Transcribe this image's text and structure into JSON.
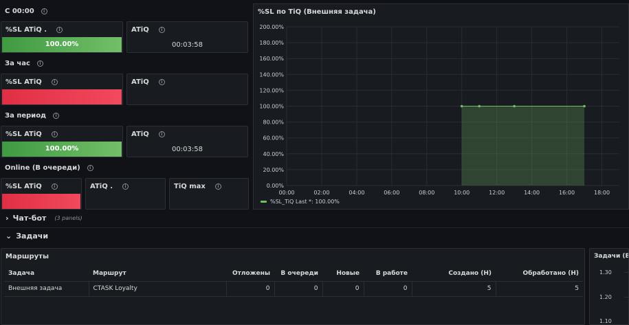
{
  "sections": {
    "since_midnight": "С 00:00",
    "last_hour": "За час",
    "period": "За период",
    "online": "Online (В очереди)"
  },
  "stats": {
    "sl_label": "%SL ATiQ .",
    "sl_label2": "%SL ATiQ",
    "atiq_label": "ATiQ",
    "atiq_label2": "ATiQ .",
    "tiq_max_label": "TiQ max",
    "since_sl_value": "100.00%",
    "since_atiq_value": "00:03:58",
    "period_sl_value": "100.00%",
    "period_atiq_value": "00:03:58",
    "colors": {
      "ok": "#73bf69",
      "bad": "#f2495c"
    }
  },
  "chart_data": {
    "type": "area",
    "title": "%SL по TiQ (Внешняя задача)",
    "y_ticks": [
      "200.00%",
      "180.00%",
      "160.00%",
      "140.00%",
      "120.00%",
      "100.00%",
      "80.00%",
      "60.00%",
      "40.00%",
      "20.00%",
      "0.00%"
    ],
    "x_ticks": [
      "00:00",
      "02:00",
      "04:00",
      "06:00",
      "08:00",
      "10:00",
      "12:00",
      "14:00",
      "16:00",
      "18:00"
    ],
    "ylim": [
      0,
      200
    ],
    "xlim_hours": [
      0,
      19
    ],
    "series": [
      {
        "name": "%SL_TiQ",
        "x": [
          10,
          11,
          13,
          17
        ],
        "values": [
          100,
          100,
          100,
          100
        ],
        "color": "#73bf69"
      }
    ],
    "legend": "%SL_TiQ  Last *: 100.00%",
    "grid": true
  },
  "rows": {
    "chatbot": "Чат-бот",
    "chatbot_count": "(3 panels)",
    "tasks": "Задачи"
  },
  "routes": {
    "title": "Маршруты",
    "columns": [
      "Задача",
      "Маршрут",
      "Отложены",
      "В очереди",
      "Новые",
      "В работе",
      "Создано (Н)",
      "Обработано (Н)"
    ],
    "rows": [
      [
        "Внешняя задача",
        "CTASK Loyalty",
        "0",
        "0",
        "0",
        "0",
        "5",
        "5"
      ]
    ]
  },
  "side_panel": {
    "title": "Задачи (Вне",
    "y_ticks": [
      "1.30",
      "1.20",
      "1.10"
    ]
  }
}
